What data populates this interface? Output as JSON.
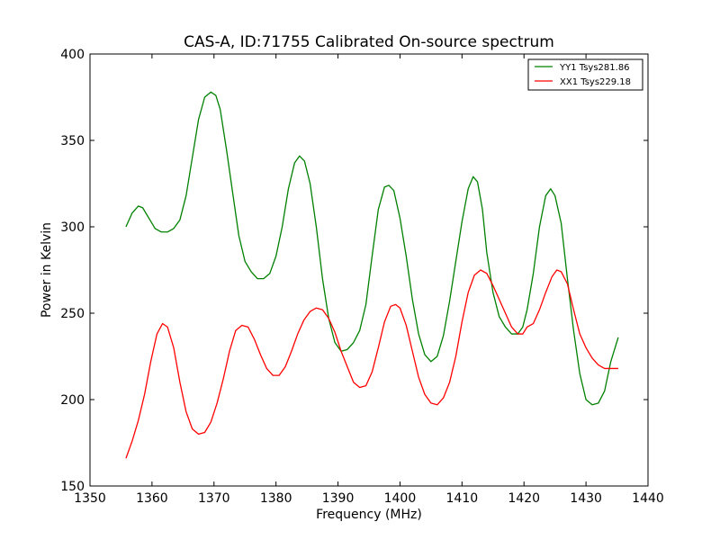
{
  "chart_data": {
    "type": "line",
    "title": "CAS-A, ID:71755 Calibrated On-source spectrum",
    "xlabel": "Frequency (MHz)",
    "ylabel": "Power in Kelvin",
    "xlim": [
      1350,
      1440
    ],
    "ylim": [
      150,
      400
    ],
    "xticks": [
      1350,
      1360,
      1370,
      1380,
      1390,
      1400,
      1410,
      1420,
      1430,
      1440
    ],
    "yticks": [
      150,
      200,
      250,
      300,
      350,
      400
    ],
    "grid": false,
    "legend_position": "top-right",
    "series": [
      {
        "name": "YY1 Tsys281.86",
        "color": "#008000",
        "points": [
          [
            1355.8,
            300
          ],
          [
            1356.8,
            308
          ],
          [
            1357.8,
            312
          ],
          [
            1358.5,
            311
          ],
          [
            1359.5,
            305
          ],
          [
            1360.5,
            299
          ],
          [
            1361.5,
            297
          ],
          [
            1362.5,
            297
          ],
          [
            1363.5,
            299
          ],
          [
            1364.5,
            304
          ],
          [
            1365.5,
            318
          ],
          [
            1366.5,
            340
          ],
          [
            1367.5,
            362
          ],
          [
            1368.5,
            375
          ],
          [
            1369.5,
            378
          ],
          [
            1370.3,
            376
          ],
          [
            1371.0,
            368
          ],
          [
            1372.0,
            345
          ],
          [
            1373.0,
            320
          ],
          [
            1374.0,
            295
          ],
          [
            1375.0,
            280
          ],
          [
            1376.0,
            274
          ],
          [
            1377.0,
            270
          ],
          [
            1378.0,
            270
          ],
          [
            1379.0,
            273
          ],
          [
            1380.0,
            283
          ],
          [
            1381.0,
            300
          ],
          [
            1382.0,
            322
          ],
          [
            1383.0,
            337
          ],
          [
            1383.8,
            341
          ],
          [
            1384.6,
            338
          ],
          [
            1385.5,
            325
          ],
          [
            1386.5,
            300
          ],
          [
            1387.5,
            270
          ],
          [
            1388.5,
            247
          ],
          [
            1389.5,
            233
          ],
          [
            1390.5,
            228
          ],
          [
            1391.5,
            229
          ],
          [
            1392.5,
            233
          ],
          [
            1393.5,
            240
          ],
          [
            1394.5,
            255
          ],
          [
            1395.5,
            283
          ],
          [
            1396.5,
            310
          ],
          [
            1397.5,
            323
          ],
          [
            1398.2,
            324
          ],
          [
            1399.0,
            321
          ],
          [
            1400.0,
            305
          ],
          [
            1401.0,
            283
          ],
          [
            1402.0,
            258
          ],
          [
            1403.0,
            238
          ],
          [
            1404.0,
            226
          ],
          [
            1405.0,
            222
          ],
          [
            1406.0,
            225
          ],
          [
            1407.0,
            237
          ],
          [
            1408.0,
            257
          ],
          [
            1409.0,
            280
          ],
          [
            1410.0,
            303
          ],
          [
            1411.0,
            322
          ],
          [
            1411.8,
            329
          ],
          [
            1412.5,
            326
          ],
          [
            1413.3,
            310
          ],
          [
            1414.0,
            285
          ],
          [
            1415.0,
            262
          ],
          [
            1416.0,
            248
          ],
          [
            1417.0,
            242
          ],
          [
            1418.0,
            238
          ],
          [
            1419.0,
            238
          ],
          [
            1419.8,
            242
          ],
          [
            1420.5,
            252
          ],
          [
            1421.5,
            273
          ],
          [
            1422.5,
            300
          ],
          [
            1423.5,
            318
          ],
          [
            1424.3,
            322
          ],
          [
            1425.0,
            318
          ],
          [
            1426.0,
            302
          ],
          [
            1427.0,
            270
          ],
          [
            1428.0,
            240
          ],
          [
            1429.0,
            215
          ],
          [
            1430.0,
            200
          ],
          [
            1431.0,
            197
          ],
          [
            1432.0,
            198
          ],
          [
            1433.0,
            205
          ],
          [
            1434.0,
            222
          ],
          [
            1435.2,
            236
          ]
        ]
      },
      {
        "name": "XX1 Tsys229.18",
        "color": "#ff0000",
        "points": [
          [
            1355.8,
            166
          ],
          [
            1356.8,
            176
          ],
          [
            1357.8,
            188
          ],
          [
            1358.8,
            203
          ],
          [
            1359.8,
            222
          ],
          [
            1360.8,
            238
          ],
          [
            1361.7,
            244
          ],
          [
            1362.5,
            242
          ],
          [
            1363.5,
            230
          ],
          [
            1364.5,
            210
          ],
          [
            1365.5,
            193
          ],
          [
            1366.5,
            183
          ],
          [
            1367.5,
            180
          ],
          [
            1368.5,
            181
          ],
          [
            1369.5,
            187
          ],
          [
            1370.5,
            198
          ],
          [
            1371.5,
            212
          ],
          [
            1372.5,
            228
          ],
          [
            1373.5,
            240
          ],
          [
            1374.5,
            243
          ],
          [
            1375.5,
            242
          ],
          [
            1376.5,
            235
          ],
          [
            1377.5,
            226
          ],
          [
            1378.5,
            218
          ],
          [
            1379.5,
            214
          ],
          [
            1380.5,
            214
          ],
          [
            1381.5,
            219
          ],
          [
            1382.5,
            228
          ],
          [
            1383.5,
            238
          ],
          [
            1384.5,
            246
          ],
          [
            1385.5,
            251
          ],
          [
            1386.5,
            253
          ],
          [
            1387.5,
            252
          ],
          [
            1388.5,
            247
          ],
          [
            1389.5,
            239
          ],
          [
            1390.5,
            228
          ],
          [
            1391.5,
            219
          ],
          [
            1392.5,
            210
          ],
          [
            1393.5,
            207
          ],
          [
            1394.5,
            208
          ],
          [
            1395.5,
            216
          ],
          [
            1396.5,
            230
          ],
          [
            1397.5,
            245
          ],
          [
            1398.5,
            254
          ],
          [
            1399.3,
            255
          ],
          [
            1400.0,
            253
          ],
          [
            1401.0,
            243
          ],
          [
            1402.0,
            228
          ],
          [
            1403.0,
            213
          ],
          [
            1404.0,
            203
          ],
          [
            1405.0,
            198
          ],
          [
            1406.0,
            197
          ],
          [
            1407.0,
            201
          ],
          [
            1408.0,
            210
          ],
          [
            1409.0,
            225
          ],
          [
            1410.0,
            245
          ],
          [
            1411.0,
            262
          ],
          [
            1412.0,
            272
          ],
          [
            1413.0,
            275
          ],
          [
            1414.0,
            273
          ],
          [
            1415.0,
            266
          ],
          [
            1416.0,
            258
          ],
          [
            1417.0,
            250
          ],
          [
            1418.0,
            242
          ],
          [
            1419.0,
            238
          ],
          [
            1419.8,
            238
          ],
          [
            1420.5,
            242
          ],
          [
            1421.5,
            244
          ],
          [
            1422.5,
            252
          ],
          [
            1423.5,
            262
          ],
          [
            1424.5,
            271
          ],
          [
            1425.3,
            275
          ],
          [
            1426.0,
            274
          ],
          [
            1427.0,
            267
          ],
          [
            1428.0,
            252
          ],
          [
            1429.0,
            238
          ],
          [
            1430.0,
            230
          ],
          [
            1431.0,
            224
          ],
          [
            1432.0,
            220
          ],
          [
            1433.0,
            218
          ],
          [
            1434.0,
            218
          ],
          [
            1435.2,
            218
          ]
        ]
      }
    ]
  }
}
